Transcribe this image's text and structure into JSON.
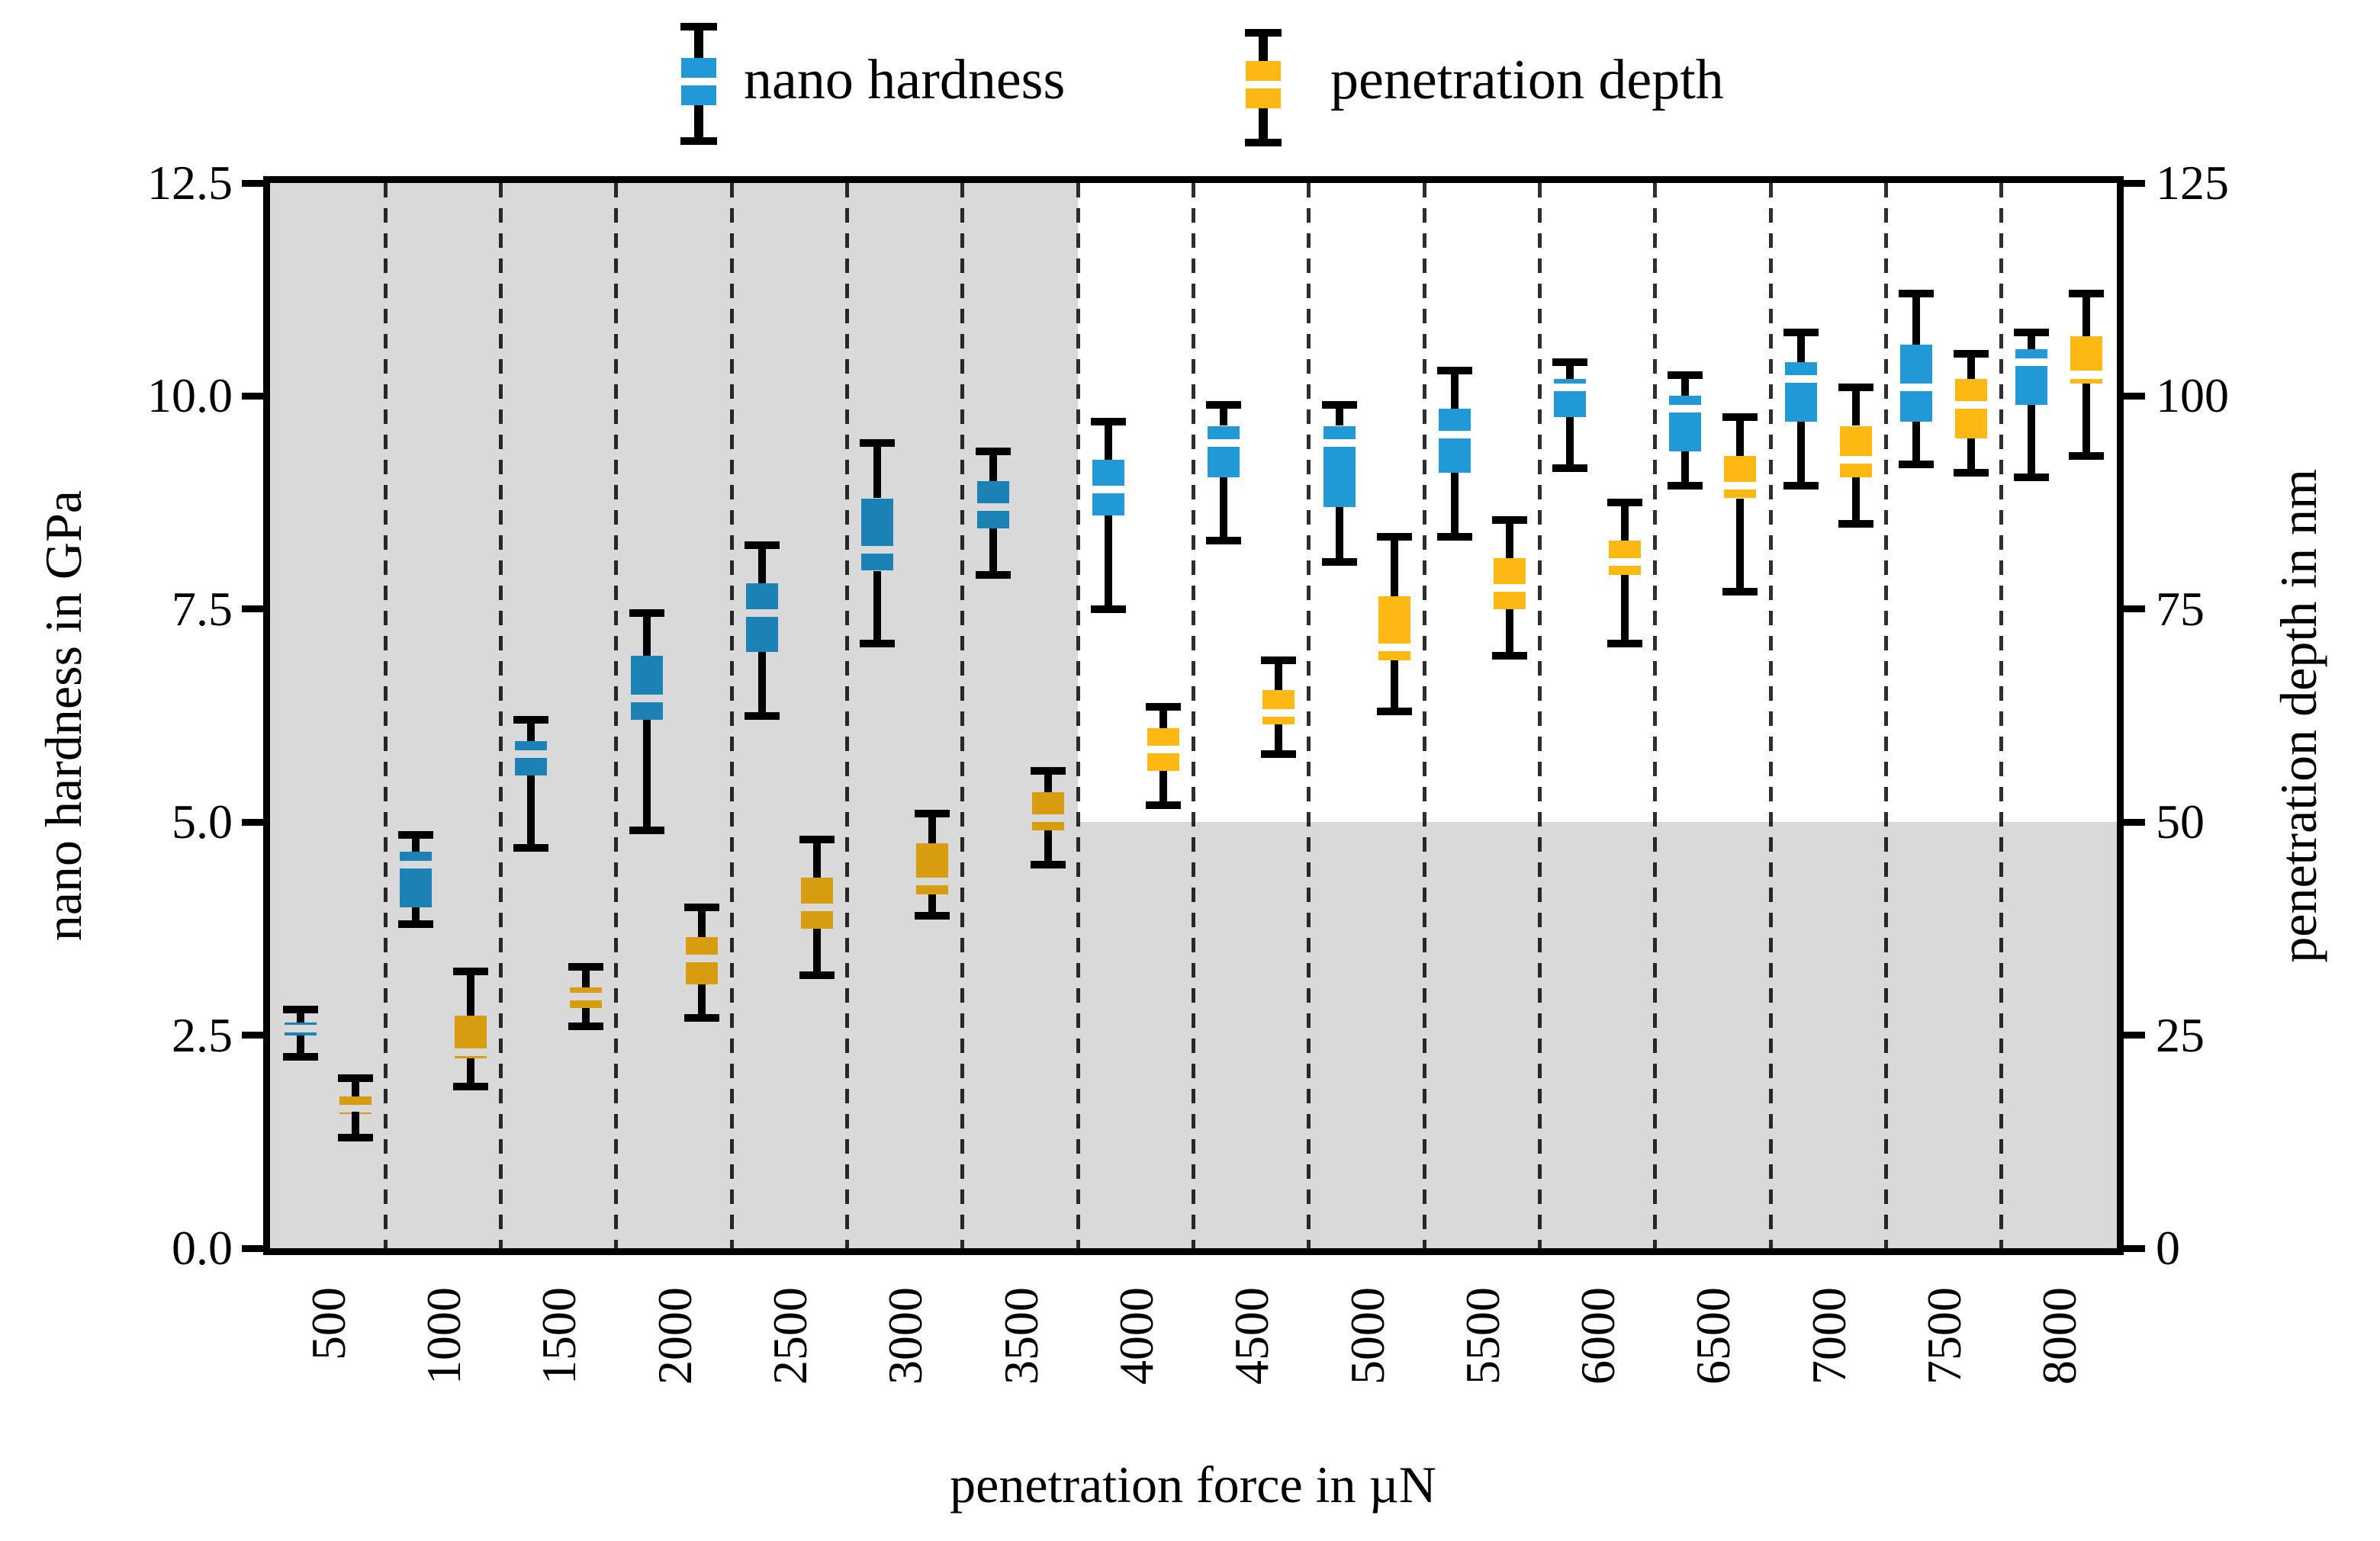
{
  "chart_data": {
    "type": "boxplot",
    "title": "",
    "xlabel": "penetration force in µN",
    "ylabel_left": "nano hardness in GPa",
    "ylabel_right": "penetration depth in nm",
    "x_categories": [
      "500",
      "1000",
      "1500",
      "2000",
      "2500",
      "3000",
      "3500",
      "4000",
      "4500",
      "5000",
      "5500",
      "6000",
      "6500",
      "7000",
      "7500",
      "8000"
    ],
    "y_left_range": [
      0,
      12.5
    ],
    "y_left_ticks": [
      {
        "label": "0.0",
        "value": 0
      },
      {
        "label": "2.5",
        "value": 2.5
      },
      {
        "label": "5.0",
        "value": 5.0
      },
      {
        "label": "7.5",
        "value": 7.5
      },
      {
        "label": "10.0",
        "value": 10.0
      },
      {
        "label": "12.5",
        "value": 12.5
      }
    ],
    "y_right_range": [
      0,
      125
    ],
    "y_right_ticks": [
      {
        "label": "0",
        "value": 0
      },
      {
        "label": "25",
        "value": 25
      },
      {
        "label": "50",
        "value": 50
      },
      {
        "label": "75",
        "value": 75
      },
      {
        "label": "100",
        "value": 100
      },
      {
        "label": "125",
        "value": 125
      }
    ],
    "grid": {
      "style": "dashed-vertical",
      "positions": "category boundaries"
    },
    "legend_position": "top-center",
    "series": [
      {
        "name": "nano hardness",
        "axis": "left",
        "unit": "GPa",
        "color": "#2199d6",
        "boxes": [
          {
            "x": "500",
            "low": 2.25,
            "q1": 2.5,
            "median": 2.58,
            "q3": 2.65,
            "high": 2.8
          },
          {
            "x": "1000",
            "low": 3.8,
            "q1": 4.0,
            "median": 4.5,
            "q3": 4.65,
            "high": 4.85
          },
          {
            "x": "1500",
            "low": 4.7,
            "q1": 5.55,
            "median": 5.8,
            "q3": 5.95,
            "high": 6.2
          },
          {
            "x": "2000",
            "low": 4.9,
            "q1": 6.2,
            "median": 6.45,
            "q3": 6.95,
            "high": 7.45
          },
          {
            "x": "2500",
            "low": 6.25,
            "q1": 7.0,
            "median": 7.45,
            "q3": 7.8,
            "high": 8.25
          },
          {
            "x": "3000",
            "low": 7.1,
            "q1": 7.95,
            "median": 8.2,
            "q3": 8.8,
            "high": 9.45
          },
          {
            "x": "3500",
            "low": 7.9,
            "q1": 8.45,
            "median": 8.7,
            "q3": 9.0,
            "high": 9.35
          },
          {
            "x": "4000",
            "low": 7.5,
            "q1": 8.6,
            "median": 8.9,
            "q3": 9.25,
            "high": 9.7
          },
          {
            "x": "4500",
            "low": 8.3,
            "q1": 9.05,
            "median": 9.45,
            "q3": 9.65,
            "high": 9.9
          },
          {
            "x": "5000",
            "low": 8.05,
            "q1": 8.7,
            "median": 9.45,
            "q3": 9.65,
            "high": 9.9
          },
          {
            "x": "5500",
            "low": 8.35,
            "q1": 9.1,
            "median": 9.55,
            "q3": 9.85,
            "high": 10.3
          },
          {
            "x": "6000",
            "low": 9.15,
            "q1": 9.75,
            "median": 10.1,
            "q3": 10.2,
            "high": 10.4
          },
          {
            "x": "6500",
            "low": 8.95,
            "q1": 9.35,
            "median": 9.85,
            "q3": 10.0,
            "high": 10.25
          },
          {
            "x": "7000",
            "low": 8.95,
            "q1": 9.7,
            "median": 10.2,
            "q3": 10.4,
            "high": 10.75
          },
          {
            "x": "7500",
            "low": 9.2,
            "q1": 9.7,
            "median": 10.1,
            "q3": 10.6,
            "high": 11.2
          },
          {
            "x": "8000",
            "low": 9.05,
            "q1": 9.9,
            "median": 10.4,
            "q3": 10.55,
            "high": 10.75
          }
        ]
      },
      {
        "name": "penetration depth",
        "axis": "right",
        "unit": "nm",
        "color": "#fdb813",
        "boxes": [
          {
            "x": "500",
            "low": 13,
            "q1": 16,
            "median": 16.4,
            "q3": 17.8,
            "high": 20
          },
          {
            "x": "1000",
            "low": 19,
            "q1": 22.3,
            "median": 23,
            "q3": 27.3,
            "high": 32.5
          },
          {
            "x": "1500",
            "low": 26,
            "q1": 28.2,
            "median": 29.5,
            "q3": 30.6,
            "high": 33
          },
          {
            "x": "2000",
            "low": 27,
            "q1": 31,
            "median": 34,
            "q3": 36.5,
            "high": 40
          },
          {
            "x": "2500",
            "low": 32,
            "q1": 37.5,
            "median": 40,
            "q3": 43.5,
            "high": 48
          },
          {
            "x": "3000",
            "low": 39,
            "q1": 41.5,
            "median": 43,
            "q3": 47.5,
            "high": 51
          },
          {
            "x": "3500",
            "low": 45,
            "q1": 49,
            "median": 50.5,
            "q3": 53.5,
            "high": 56
          },
          {
            "x": "4000",
            "low": 52,
            "q1": 56,
            "median": 58.5,
            "q3": 61,
            "high": 63.5
          },
          {
            "x": "4500",
            "low": 58,
            "q1": 61.5,
            "median": 62.8,
            "q3": 65.5,
            "high": 69
          },
          {
            "x": "5000",
            "low": 63,
            "q1": 69,
            "median": 70.5,
            "q3": 76.5,
            "high": 83.5
          },
          {
            "x": "5500",
            "low": 69.5,
            "q1": 75,
            "median": 77.5,
            "q3": 81,
            "high": 85.5
          },
          {
            "x": "6000",
            "low": 71,
            "q1": 79,
            "median": 80.5,
            "q3": 83,
            "high": 87.5
          },
          {
            "x": "6500",
            "low": 77,
            "q1": 88,
            "median": 89.5,
            "q3": 93,
            "high": 97.5
          },
          {
            "x": "7000",
            "low": 85,
            "q1": 90.5,
            "median": 92.5,
            "q3": 96.5,
            "high": 101
          },
          {
            "x": "7500",
            "low": 91,
            "q1": 95,
            "median": 99,
            "q3": 102,
            "high": 105
          },
          {
            "x": "8000",
            "low": 93,
            "q1": 101.5,
            "median": 102.5,
            "q3": 107,
            "high": 112
          }
        ]
      }
    ],
    "shaded_regions": [
      {
        "name": "left-region",
        "x_from": "500",
        "x_to": "3500",
        "full_height": true
      },
      {
        "name": "bottom-right-region",
        "x_from": "4000",
        "x_to": "8000",
        "below_value_nm": 50,
        "below_value_gpa": 5.0
      }
    ]
  },
  "legend": {
    "items": [
      {
        "label": "nano hardness",
        "color": "#2199d6"
      },
      {
        "label": "penetration depth",
        "color": "#fdb813"
      }
    ]
  },
  "colors": {
    "blue": "#2199d6",
    "yellow": "#fdb813",
    "whisker": "#000000",
    "grid": "#2e2e2e",
    "shade": "rgba(0,0,0,0.15)",
    "background": "#ffffff"
  }
}
